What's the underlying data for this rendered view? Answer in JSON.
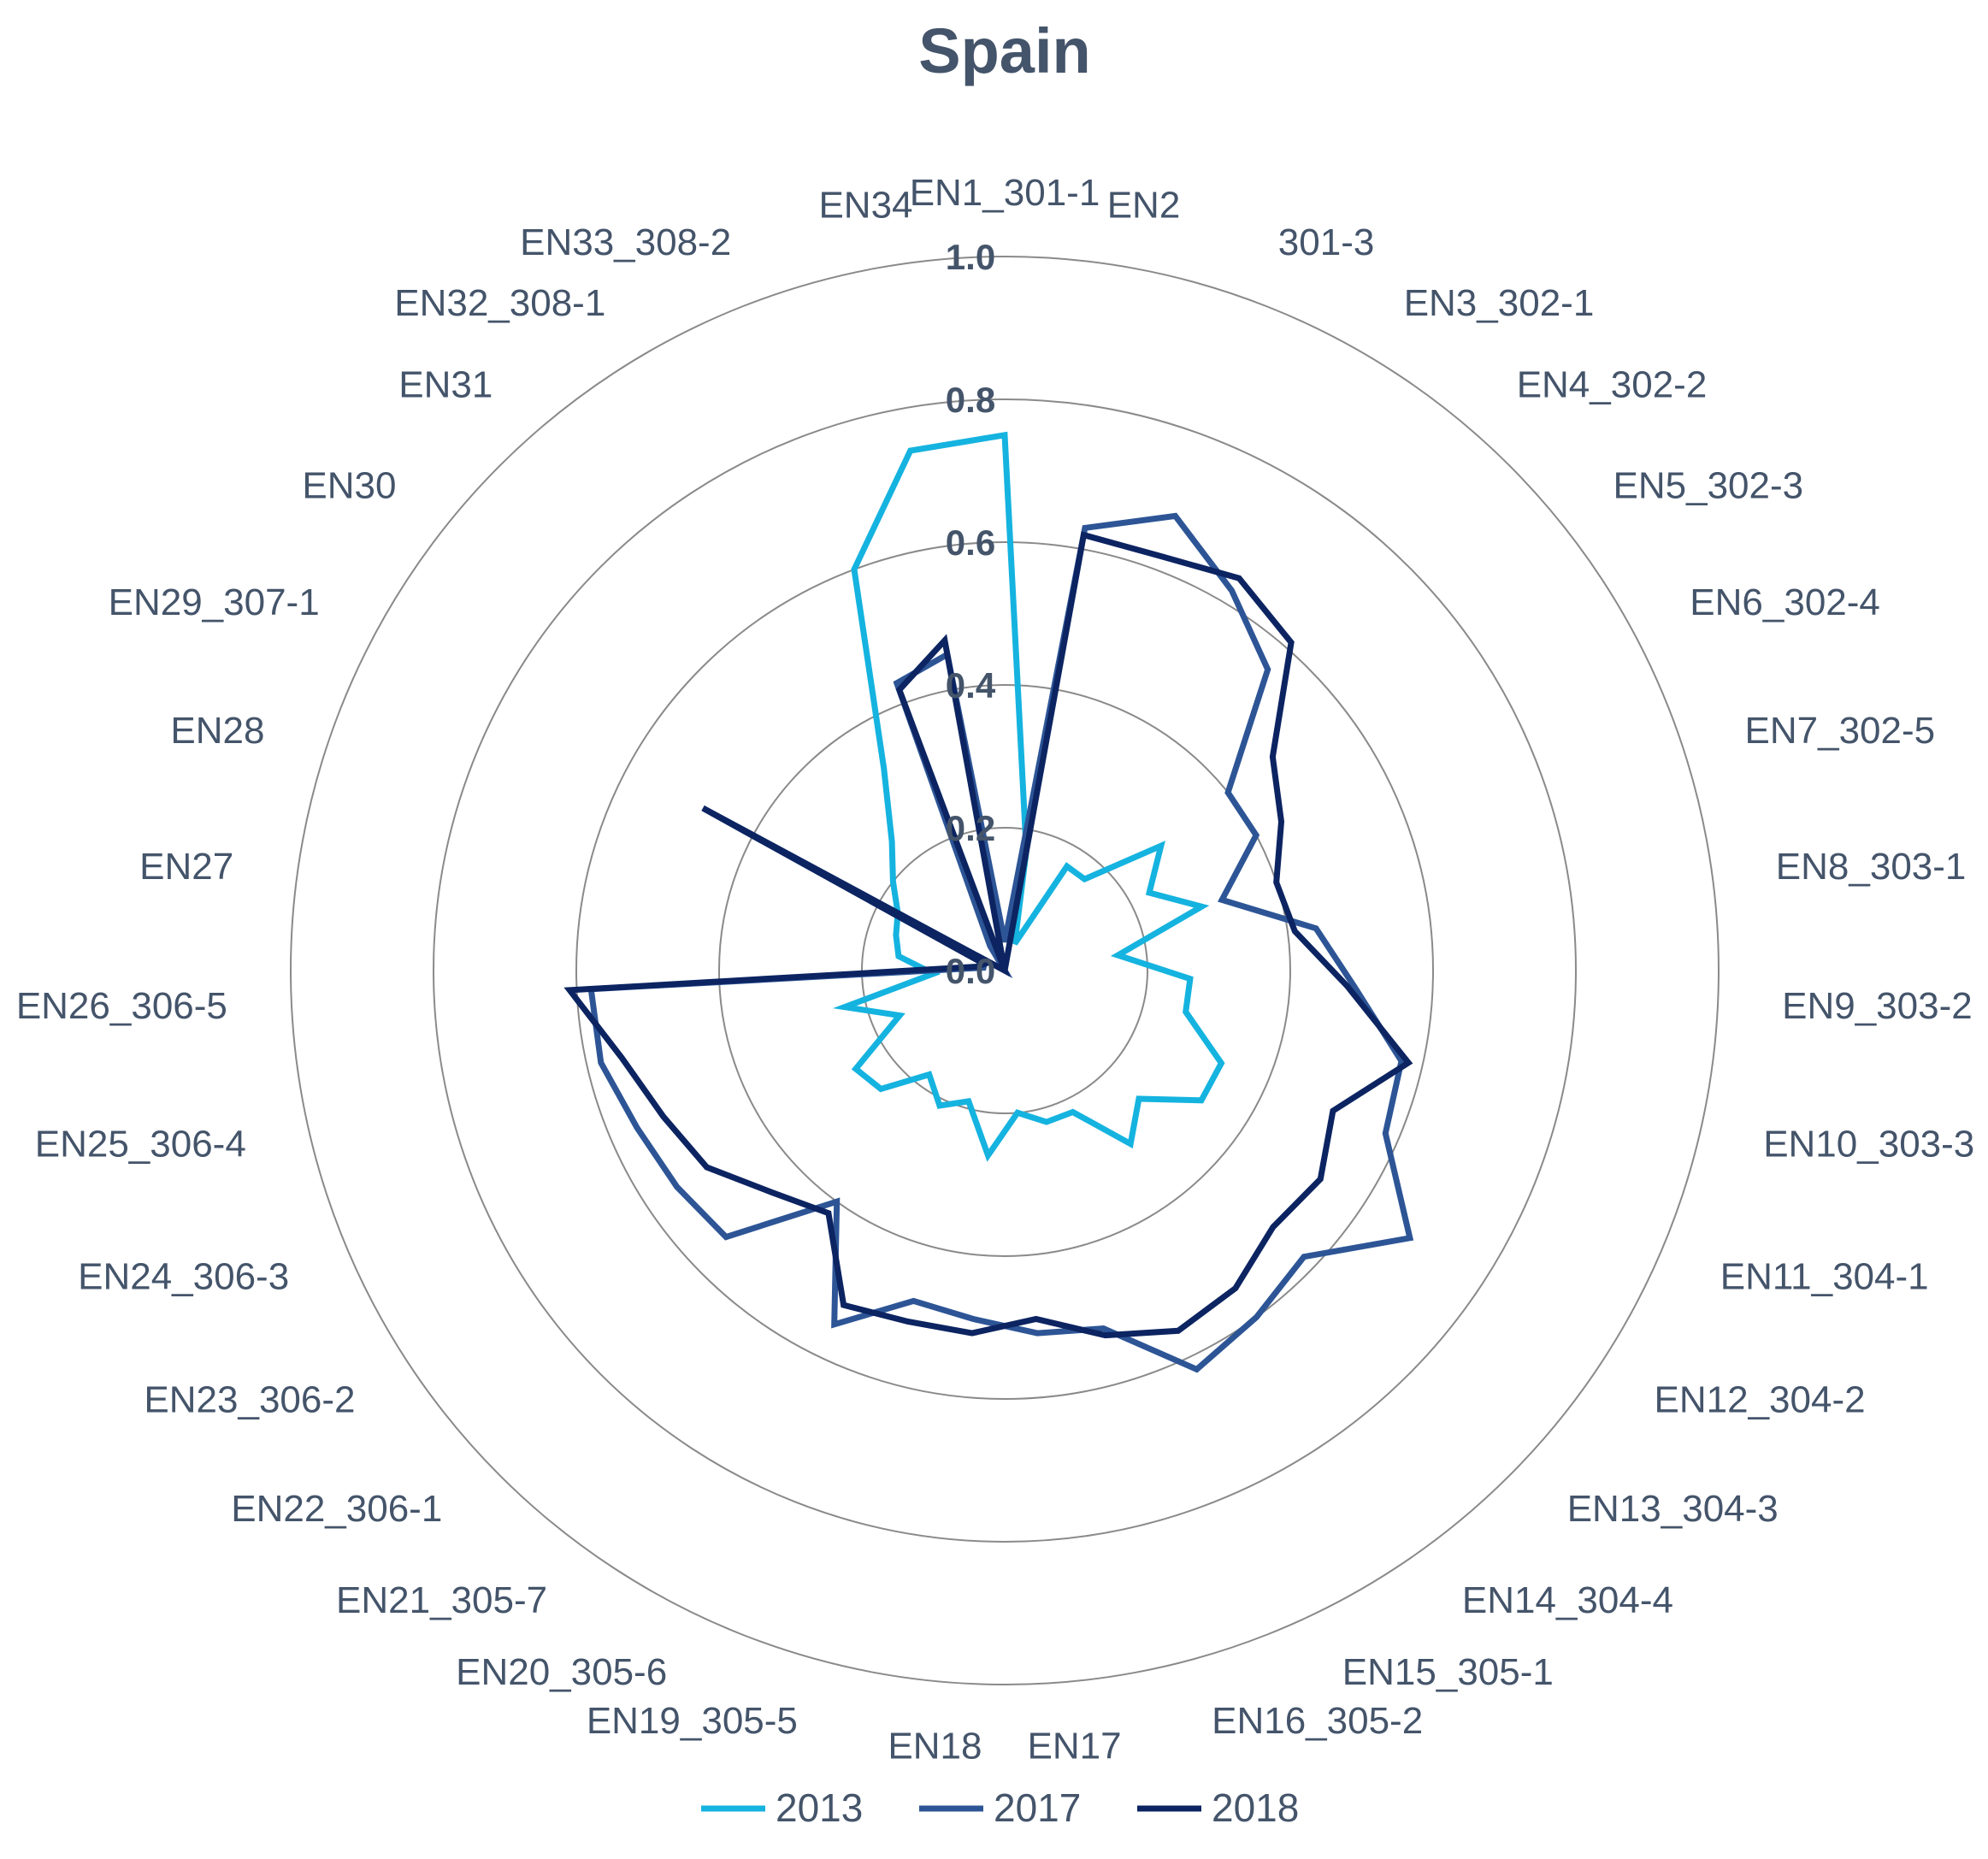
{
  "chart_data": {
    "type": "radar",
    "title": "Spain",
    "categories": [
      "EN1_301-1",
      "EN2",
      "301-3",
      "EN3_302-1",
      "EN4_302-2",
      "EN5_302-3",
      "EN6_302-4",
      "EN7_302-5",
      "EN8_303-1",
      "EN9_303-2",
      "EN10_303-3",
      "EN11_304-1",
      "EN12_304-2",
      "EN13_304-3",
      "EN14_304-4",
      "EN15_305-1",
      "EN16_305-2",
      "EN17",
      "EN18",
      "EN19_305-5",
      "EN20_305-6",
      "EN21_305-7",
      "EN22_306-1",
      "EN23_306-2",
      "EN24_306-3",
      "EN25_306-4",
      "EN26_306-5",
      "EN27",
      "EN28",
      "EN29_307-1",
      "EN30",
      "EN31",
      "EN32_308-1",
      "EN33_308-2",
      "EN34"
    ],
    "ticks": [
      "0.0",
      "0.2",
      "0.4",
      "0.6",
      "0.8",
      "1.0"
    ],
    "rlim": [
      0,
      1
    ],
    "grid": true,
    "legend_position": "bottom",
    "series": [
      {
        "name": "2013",
        "color": "#15b3df",
        "values": [
          0.75,
          0.17,
          0.04,
          0.17,
          0.17,
          0.28,
          0.23,
          0.29,
          0.16,
          0.26,
          0.26,
          0.33,
          0.33,
          0.26,
          0.3,
          0.22,
          0.22,
          0.2,
          0.26,
          0.19,
          0.21,
          0.18,
          0.24,
          0.25,
          0.16,
          0.23,
          0.1,
          0.15,
          0.16,
          0.17,
          0.2,
          0.24,
          0.33,
          0.6,
          0.74
        ]
      },
      {
        "name": "2017",
        "color": "#2d5596",
        "values": [
          0.04,
          0.63,
          0.68,
          0.62,
          0.56,
          0.4,
          0.4,
          0.32,
          0.44,
          0.49,
          0.57,
          0.58,
          0.68,
          0.58,
          0.6,
          0.62,
          0.52,
          0.51,
          0.49,
          0.48,
          0.55,
          0.4,
          0.54,
          0.55,
          0.56,
          0.58,
          0.58,
          0.03,
          0.03,
          0.48,
          0.0,
          0.0,
          0.04,
          0.43,
          0.45
        ]
      },
      {
        "name": "2018",
        "color": "#0c2461",
        "values": [
          0.0,
          0.62,
          0.62,
          0.64,
          0.61,
          0.48,
          0.44,
          0.4,
          0.41,
          0.48,
          0.58,
          0.5,
          0.53,
          0.52,
          0.55,
          0.56,
          0.53,
          0.49,
          0.51,
          0.51,
          0.52,
          0.42,
          0.45,
          0.5,
          0.52,
          0.55,
          0.61,
          0.04,
          0.03,
          0.48,
          0.0,
          0.0,
          0.0,
          0.42,
          0.47
        ]
      }
    ]
  }
}
